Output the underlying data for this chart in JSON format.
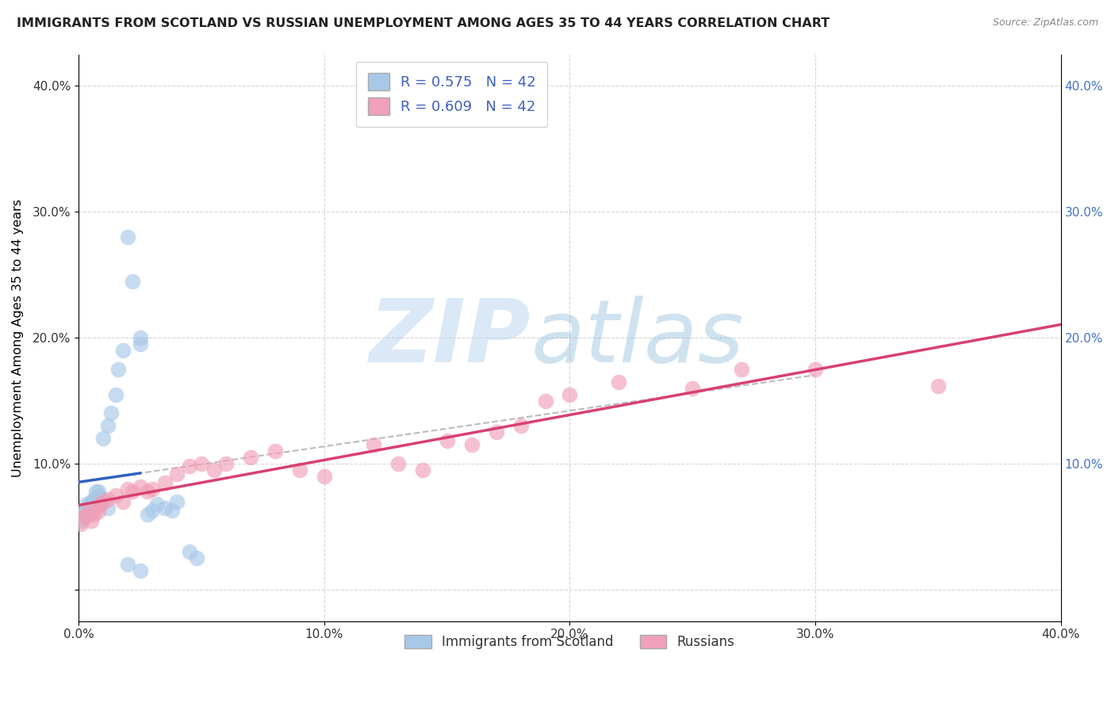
{
  "title": "IMMIGRANTS FROM SCOTLAND VS RUSSIAN UNEMPLOYMENT AMONG AGES 35 TO 44 YEARS CORRELATION CHART",
  "source": "Source: ZipAtlas.com",
  "ylabel": "Unemployment Among Ages 35 to 44 years",
  "xlim": [
    0.0,
    0.4
  ],
  "ylim": [
    -0.025,
    0.425
  ],
  "xtick_vals": [
    0.0,
    0.1,
    0.2,
    0.3,
    0.4
  ],
  "ytick_vals": [
    0.0,
    0.1,
    0.2,
    0.3,
    0.4
  ],
  "xtick_labels": [
    "0.0%",
    "10.0%",
    "20.0%",
    "30.0%",
    "40.0%"
  ],
  "ytick_labels": [
    "",
    "10.0%",
    "20.0%",
    "30.0%",
    "40.0%"
  ],
  "r_scotland": 0.575,
  "n_scotland": 42,
  "r_russian": 0.609,
  "n_russian": 42,
  "scotland_color": "#a8c8e8",
  "russian_color": "#f0a0b8",
  "scotland_line_color": "#3060c0",
  "russian_line_color": "#d84070",
  "watermark_zip_color": "#c8dff0",
  "watermark_atlas_color": "#a0c8e8",
  "scotland_x": [
    0.001,
    0.001,
    0.001,
    0.002,
    0.002,
    0.002,
    0.003,
    0.003,
    0.003,
    0.004,
    0.004,
    0.005,
    0.005,
    0.005,
    0.006,
    0.006,
    0.007,
    0.007,
    0.008,
    0.008,
    0.01,
    0.012,
    0.013,
    0.015,
    0.016,
    0.018,
    0.02,
    0.022,
    0.025,
    0.025,
    0.028,
    0.03,
    0.032,
    0.035,
    0.038,
    0.04,
    0.045,
    0.048,
    0.01,
    0.012,
    0.02,
    0.025
  ],
  "scotland_y": [
    0.055,
    0.058,
    0.062,
    0.06,
    0.063,
    0.057,
    0.065,
    0.068,
    0.059,
    0.06,
    0.065,
    0.063,
    0.068,
    0.07,
    0.07,
    0.072,
    0.078,
    0.072,
    0.075,
    0.078,
    0.12,
    0.13,
    0.14,
    0.155,
    0.175,
    0.19,
    0.28,
    0.245,
    0.195,
    0.2,
    0.06,
    0.063,
    0.068,
    0.065,
    0.063,
    0.07,
    0.03,
    0.025,
    0.072,
    0.065,
    0.02,
    0.015
  ],
  "russian_x": [
    0.001,
    0.002,
    0.003,
    0.004,
    0.005,
    0.006,
    0.007,
    0.008,
    0.009,
    0.01,
    0.012,
    0.015,
    0.018,
    0.02,
    0.022,
    0.025,
    0.028,
    0.03,
    0.035,
    0.04,
    0.045,
    0.05,
    0.055,
    0.06,
    0.07,
    0.08,
    0.09,
    0.1,
    0.12,
    0.13,
    0.14,
    0.15,
    0.16,
    0.17,
    0.18,
    0.19,
    0.2,
    0.22,
    0.25,
    0.27,
    0.3,
    0.35
  ],
  "russian_y": [
    0.052,
    0.058,
    0.06,
    0.062,
    0.055,
    0.06,
    0.065,
    0.062,
    0.068,
    0.07,
    0.072,
    0.075,
    0.07,
    0.08,
    0.078,
    0.082,
    0.078,
    0.08,
    0.085,
    0.092,
    0.098,
    0.1,
    0.095,
    0.1,
    0.105,
    0.11,
    0.095,
    0.09,
    0.115,
    0.1,
    0.095,
    0.118,
    0.115,
    0.125,
    0.13,
    0.15,
    0.155,
    0.165,
    0.16,
    0.175,
    0.175,
    0.162
  ],
  "scotland_line_xlim": [
    0.0,
    0.03
  ],
  "scotland_dash_xlim": [
    0.0,
    0.3
  ],
  "russian_line_xlim": [
    0.0,
    0.4
  ]
}
